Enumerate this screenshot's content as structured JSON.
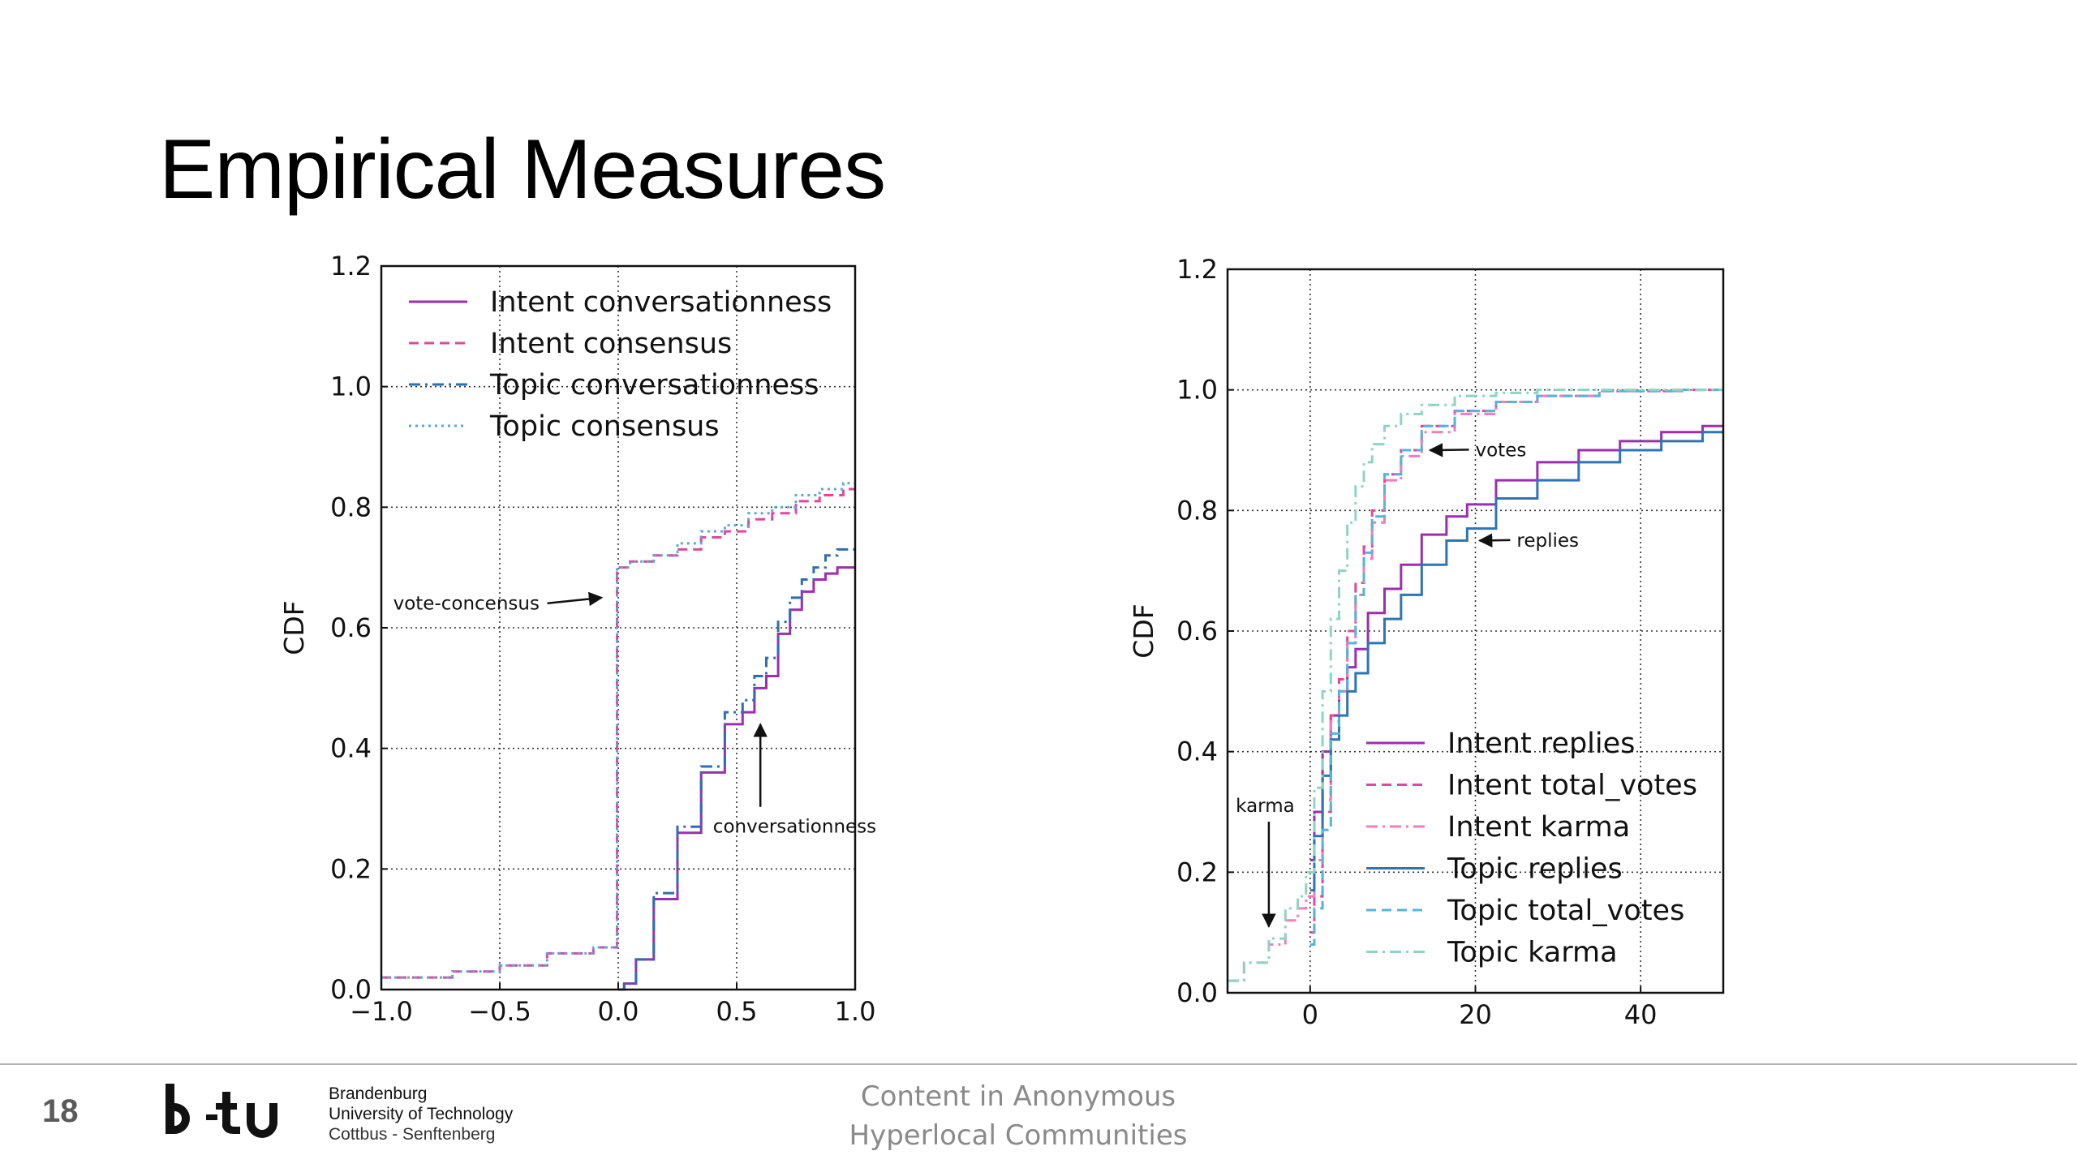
{
  "slide": {
    "title": "Empirical Measures",
    "page_number": "18",
    "footer_line1": "Content in Anonymous",
    "footer_line2": "Hyperlocal Communities",
    "institution_line1": "Brandenburg",
    "institution_line2": "University of Technology",
    "institution_line3": "Cottbus - Senftenberg",
    "logo_text": "b-tu"
  },
  "chart_data": [
    {
      "type": "line",
      "ylabel": "CDF",
      "xlim": [
        -1.0,
        1.0
      ],
      "ylim": [
        0.0,
        1.2
      ],
      "grid": "dotted",
      "legend_position": "upper-left",
      "x_ticks": [
        "−1.0",
        "−0.5",
        "0.0",
        "0.5",
        "1.0"
      ],
      "y_ticks": [
        "0.0",
        "0.2",
        "0.4",
        "0.6",
        "0.8",
        "1.0",
        "1.2"
      ],
      "annotations": [
        {
          "text": "vote-concensus",
          "x": -0.95,
          "y": 0.63,
          "arrow_to": [
            -0.07,
            0.65
          ]
        },
        {
          "text": "conversationness",
          "x": 0.4,
          "y": 0.26,
          "arrow_to": [
            0.6,
            0.44
          ]
        }
      ],
      "series": [
        {
          "name": "Intent conversationness",
          "color": "#9b2fae",
          "dash": "solid",
          "x": [
            0.0,
            0.05,
            0.1,
            0.2,
            0.3,
            0.4,
            0.5,
            0.55,
            0.6,
            0.65,
            0.7,
            0.75,
            0.8,
            0.85,
            0.9,
            0.95,
            1.0
          ],
          "y": [
            0.0,
            0.01,
            0.05,
            0.15,
            0.26,
            0.36,
            0.44,
            0.46,
            0.5,
            0.52,
            0.59,
            0.63,
            0.66,
            0.68,
            0.69,
            0.7,
            0.7
          ]
        },
        {
          "name": "Intent consensus",
          "color": "#e0489e",
          "dash": "dashed",
          "x": [
            -1.0,
            -0.8,
            -0.6,
            -0.4,
            -0.2,
            -0.01,
            0.0,
            0.1,
            0.2,
            0.3,
            0.4,
            0.5,
            0.6,
            0.7,
            0.8,
            0.9,
            1.0
          ],
          "y": [
            0.02,
            0.02,
            0.03,
            0.04,
            0.06,
            0.07,
            0.7,
            0.71,
            0.72,
            0.73,
            0.75,
            0.76,
            0.78,
            0.79,
            0.81,
            0.82,
            0.83
          ]
        },
        {
          "name": "Topic conversationness",
          "color": "#2f6fb0",
          "dash": "dashdot",
          "x": [
            0.0,
            0.05,
            0.1,
            0.2,
            0.3,
            0.4,
            0.5,
            0.55,
            0.6,
            0.65,
            0.7,
            0.75,
            0.8,
            0.85,
            0.9,
            0.95,
            1.0
          ],
          "y": [
            0.0,
            0.01,
            0.05,
            0.16,
            0.27,
            0.37,
            0.46,
            0.48,
            0.52,
            0.55,
            0.61,
            0.65,
            0.68,
            0.7,
            0.72,
            0.73,
            0.73
          ]
        },
        {
          "name": "Topic consensus",
          "color": "#5aa9d6",
          "dash": "dotted",
          "x": [
            -1.0,
            -0.8,
            -0.6,
            -0.4,
            -0.2,
            -0.01,
            0.0,
            0.1,
            0.2,
            0.3,
            0.4,
            0.5,
            0.6,
            0.7,
            0.8,
            0.9,
            1.0
          ],
          "y": [
            0.02,
            0.02,
            0.03,
            0.04,
            0.06,
            0.07,
            0.7,
            0.71,
            0.72,
            0.74,
            0.76,
            0.77,
            0.79,
            0.8,
            0.82,
            0.83,
            0.84
          ]
        }
      ]
    },
    {
      "type": "line",
      "ylabel": "CDF",
      "xlim": [
        -10,
        50
      ],
      "ylim": [
        0.0,
        1.2
      ],
      "grid": "dotted",
      "legend_position": "lower-right",
      "x_ticks": [
        "0",
        "20",
        "40"
      ],
      "x_tick_values": [
        0,
        20,
        40
      ],
      "y_ticks": [
        "0.0",
        "0.2",
        "0.4",
        "0.6",
        "0.8",
        "1.0",
        "1.2"
      ],
      "annotations": [
        {
          "text": "votes",
          "x": 20,
          "y": 0.89,
          "arrow_to": [
            14.5,
            0.9
          ]
        },
        {
          "text": "replies",
          "x": 25,
          "y": 0.74,
          "arrow_to": [
            20.5,
            0.75
          ]
        },
        {
          "text": "karma",
          "x": -9,
          "y": 0.3,
          "arrow_to": [
            -5,
            0.11
          ]
        }
      ],
      "series": [
        {
          "name": "Intent replies",
          "color": "#9b2fae",
          "dash": "solid",
          "x": [
            0,
            1,
            2,
            3,
            4,
            5,
            6,
            8,
            10,
            12,
            15,
            18,
            20,
            25,
            30,
            35,
            40,
            45,
            50
          ],
          "y": [
            0.22,
            0.3,
            0.4,
            0.46,
            0.5,
            0.54,
            0.57,
            0.63,
            0.67,
            0.71,
            0.76,
            0.79,
            0.81,
            0.85,
            0.88,
            0.9,
            0.915,
            0.93,
            0.94
          ]
        },
        {
          "name": "Intent total_votes",
          "color": "#e0489e",
          "dash": "dashed",
          "x": [
            0,
            1,
            2,
            3,
            4,
            5,
            6,
            7,
            8,
            10,
            12,
            15,
            20,
            25,
            30,
            40,
            50
          ],
          "y": [
            0.1,
            0.16,
            0.3,
            0.46,
            0.52,
            0.6,
            0.68,
            0.74,
            0.8,
            0.86,
            0.9,
            0.94,
            0.965,
            0.98,
            0.99,
            0.998,
            1.0
          ]
        },
        {
          "name": "Intent karma",
          "color": "#ee7fb8",
          "dash": "dashdot",
          "x": [
            -10,
            -6,
            -4,
            -2,
            -1,
            0,
            1,
            2,
            3,
            4,
            5,
            6,
            7,
            8,
            10,
            12,
            15,
            20,
            25,
            30,
            40,
            50
          ],
          "y": [
            0.02,
            0.05,
            0.08,
            0.12,
            0.14,
            0.16,
            0.22,
            0.32,
            0.45,
            0.5,
            0.58,
            0.66,
            0.72,
            0.78,
            0.85,
            0.89,
            0.93,
            0.96,
            0.98,
            0.99,
            0.998,
            1.0
          ]
        },
        {
          "name": "Topic replies",
          "color": "#2f74b5",
          "dash": "solid",
          "x": [
            0,
            1,
            2,
            3,
            4,
            5,
            6,
            8,
            10,
            12,
            15,
            18,
            20,
            25,
            30,
            35,
            40,
            45,
            50
          ],
          "y": [
            0.17,
            0.26,
            0.36,
            0.42,
            0.46,
            0.5,
            0.53,
            0.58,
            0.62,
            0.66,
            0.71,
            0.75,
            0.77,
            0.82,
            0.85,
            0.88,
            0.9,
            0.915,
            0.93
          ]
        },
        {
          "name": "Topic total_votes",
          "color": "#56b4d8",
          "dash": "dashed",
          "x": [
            0,
            1,
            2,
            3,
            4,
            5,
            6,
            7,
            8,
            10,
            12,
            15,
            20,
            25,
            30,
            40,
            50
          ],
          "y": [
            0.08,
            0.14,
            0.27,
            0.43,
            0.5,
            0.58,
            0.66,
            0.73,
            0.79,
            0.86,
            0.9,
            0.94,
            0.965,
            0.98,
            0.99,
            0.998,
            1.0
          ]
        },
        {
          "name": "Topic karma",
          "color": "#8fd3c3",
          "dash": "dashdot",
          "x": [
            -10,
            -6,
            -4,
            -2,
            -1,
            0,
            1,
            2,
            3,
            4,
            5,
            6,
            7,
            8,
            10,
            12,
            15,
            20,
            25,
            30,
            40,
            50
          ],
          "y": [
            0.02,
            0.05,
            0.09,
            0.14,
            0.16,
            0.2,
            0.34,
            0.5,
            0.62,
            0.7,
            0.78,
            0.84,
            0.88,
            0.91,
            0.94,
            0.96,
            0.975,
            0.99,
            0.995,
            1.0,
            1.0,
            1.0
          ]
        }
      ]
    }
  ]
}
